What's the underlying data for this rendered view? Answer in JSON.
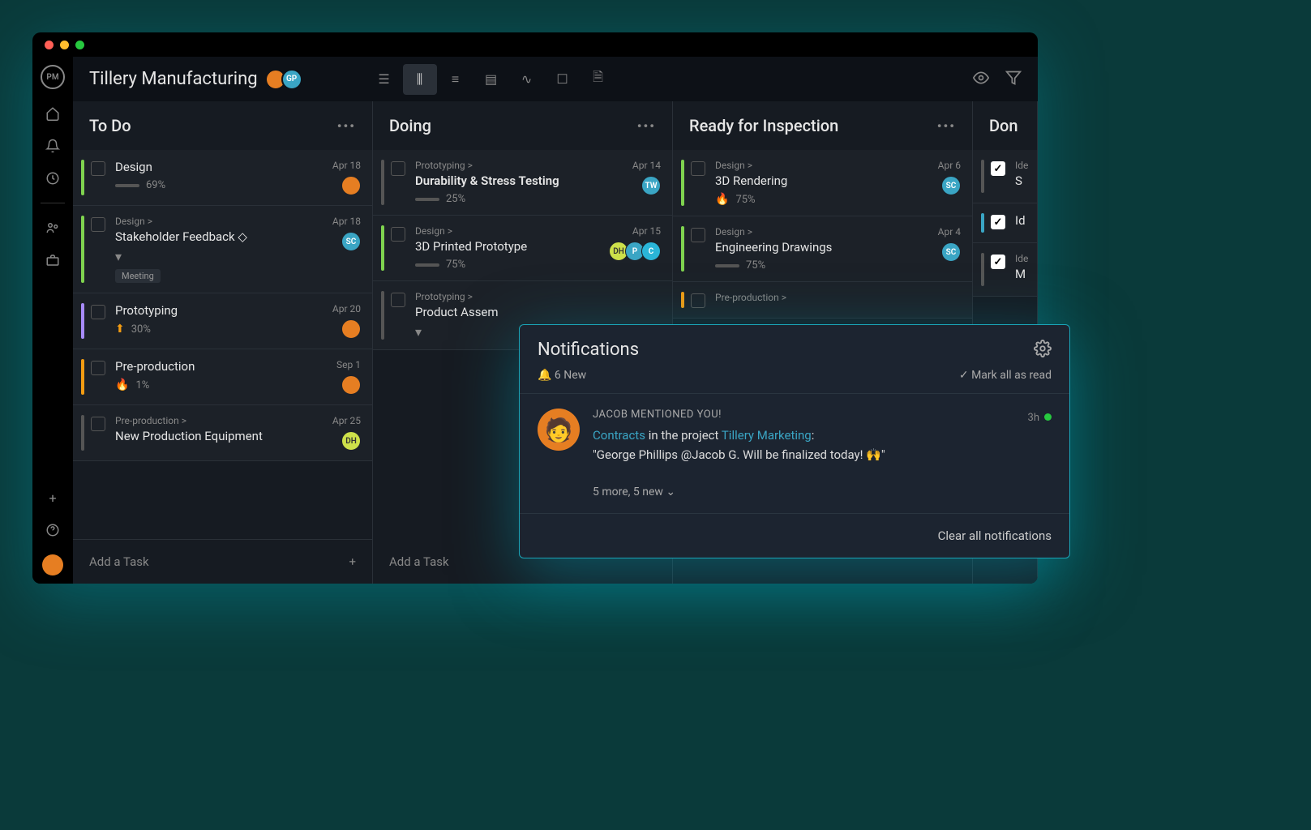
{
  "project_title": "Tillery Manufacturing",
  "header_avatars": [
    {
      "bg": "#e67e22",
      "text": "",
      "fg": "#fff"
    },
    {
      "bg": "#3aa5c4",
      "text": "GP",
      "fg": "#fff"
    }
  ],
  "columns": [
    {
      "title": "To Do",
      "cards": [
        {
          "bar": "#7fd34f",
          "parent": "",
          "title": "Design",
          "bold": false,
          "prio": "",
          "pct": "69%",
          "date": "Apr 18",
          "assignees": [
            {
              "bg": "#e67e22",
              "text": ""
            }
          ],
          "tag": "",
          "expand": false,
          "done": false
        },
        {
          "bar": "#7fd34f",
          "parent": "Design >",
          "title": "Stakeholder Feedback ◇",
          "bold": false,
          "prio": "",
          "pct": "",
          "date": "Apr 18",
          "assignees": [
            {
              "bg": "#3aa5c4",
              "text": "SC"
            }
          ],
          "tag": "Meeting",
          "expand": true,
          "done": false
        },
        {
          "bar": "#a78bfa",
          "parent": "",
          "title": "Prototyping",
          "bold": false,
          "prio": "⬆",
          "prio_color": "#f39c12",
          "pct": "30%",
          "date": "Apr 20",
          "assignees": [
            {
              "bg": "#e67e22",
              "text": ""
            }
          ],
          "tag": "",
          "expand": false,
          "done": false
        },
        {
          "bar": "#f39c12",
          "parent": "",
          "title": "Pre-production",
          "bold": false,
          "prio": "🔥",
          "pct": "1%",
          "date": "Sep 1",
          "assignees": [
            {
              "bg": "#e67e22",
              "text": ""
            }
          ],
          "tag": "",
          "expand": false,
          "done": false
        },
        {
          "bar": "#555",
          "parent": "Pre-production >",
          "title": "New Production Equipment",
          "bold": false,
          "prio": "",
          "pct": "",
          "date": "Apr 25",
          "assignees": [
            {
              "bg": "#cde04a",
              "text": "DH",
              "fg": "#333"
            }
          ],
          "tag": "",
          "expand": false,
          "done": false
        }
      ],
      "add_label": "Add a Task"
    },
    {
      "title": "Doing",
      "cards": [
        {
          "bar": "#555",
          "parent": "Prototyping >",
          "title": "Durability & Stress Testing",
          "bold": true,
          "prio": "",
          "pct": "25%",
          "date": "Apr 14",
          "assignees": [
            {
              "bg": "#3aa5c4",
              "text": "TW"
            }
          ],
          "tag": "",
          "expand": false,
          "done": false
        },
        {
          "bar": "#7fd34f",
          "parent": "Design >",
          "title": "3D Printed Prototype",
          "bold": false,
          "prio": "",
          "pct": "75%",
          "date": "Apr 15",
          "assignees": [
            {
              "bg": "#cde04a",
              "text": "DH",
              "fg": "#333"
            },
            {
              "bg": "#3aa5c4",
              "text": "P"
            },
            {
              "bg": "#2ab5d8",
              "text": "C"
            }
          ],
          "tag": "",
          "expand": false,
          "done": false
        },
        {
          "bar": "#555",
          "parent": "Prototyping >",
          "title": "Product Assem",
          "bold": false,
          "prio": "",
          "pct": "",
          "date": "",
          "assignees": [],
          "tag": "",
          "expand": true,
          "done": false
        }
      ],
      "add_label": "Add a Task"
    },
    {
      "title": "Ready for Inspection",
      "cards": [
        {
          "bar": "#7fd34f",
          "parent": "Design >",
          "title": "3D Rendering",
          "bold": false,
          "prio": "🔥",
          "pct": "75%",
          "date": "Apr 6",
          "assignees": [
            {
              "bg": "#3aa5c4",
              "text": "SC"
            }
          ],
          "tag": "",
          "expand": false,
          "done": false
        },
        {
          "bar": "#7fd34f",
          "parent": "Design >",
          "title": "Engineering Drawings",
          "bold": false,
          "prio": "",
          "pct": "75%",
          "date": "Apr 4",
          "assignees": [
            {
              "bg": "#3aa5c4",
              "text": "SC"
            }
          ],
          "tag": "",
          "expand": false,
          "done": false
        },
        {
          "bar": "#f39c12",
          "parent": "Pre-production >",
          "title": "",
          "bold": false,
          "prio": "",
          "pct": "",
          "date": "",
          "assignees": [],
          "tag": "",
          "expand": false,
          "done": false
        }
      ],
      "add_label": ""
    },
    {
      "title": "Don",
      "cards": [
        {
          "bar": "#555",
          "parent": "Ide",
          "title": "S",
          "done": true
        },
        {
          "bar": "#3aa5c4",
          "parent": "",
          "title": "Id",
          "done": true
        },
        {
          "bar": "#555",
          "parent": "Ide",
          "title": "M",
          "done": true
        }
      ],
      "add_label": ""
    }
  ],
  "notifications": {
    "title": "Notifications",
    "count": "6 New",
    "mark_read": "Mark all as read",
    "item": {
      "by": "JACOB MENTIONED YOU!",
      "link1": "Contracts",
      "mid1": " in the project ",
      "link2": "Tillery Marketing",
      "mid2": ":",
      "quote": "\"George Phillips @Jacob G. Will be finalized today! 🙌\"",
      "time": "3h"
    },
    "more": "5 more, 5 new ",
    "clear": "Clear all notifications"
  }
}
